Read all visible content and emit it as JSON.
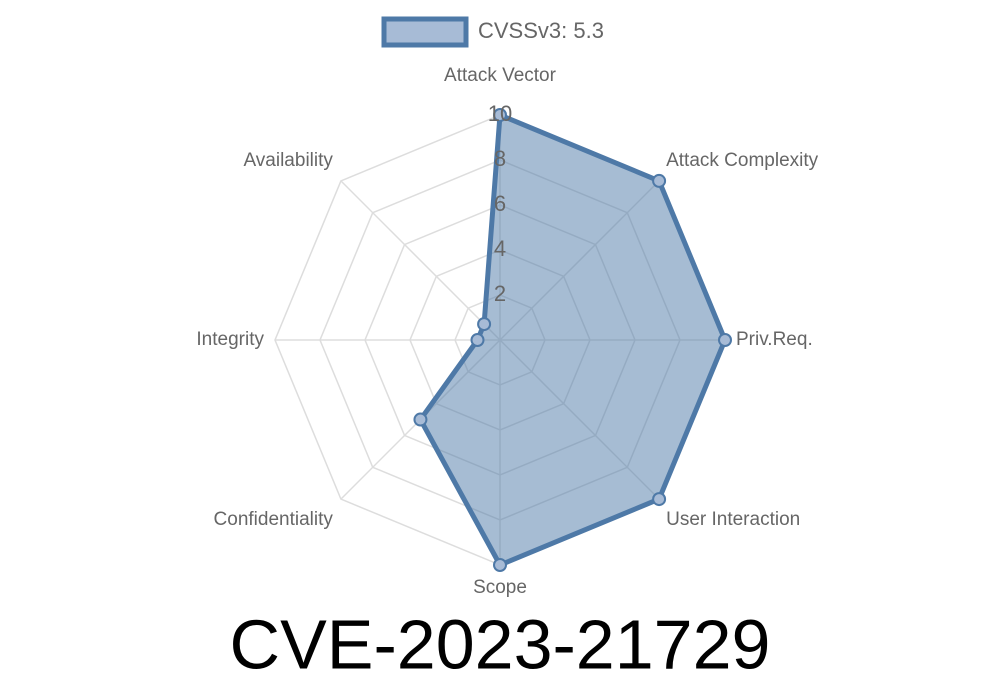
{
  "chart_data": {
    "type": "radar",
    "title": "CVE-2023-21729",
    "categories": [
      "Attack Vector",
      "Attack Complexity",
      "Priv.Req.",
      "User Interaction",
      "Scope",
      "Confidentiality",
      "Integrity",
      "Availability"
    ],
    "series": [
      {
        "name": "CVSSv3: 5.3",
        "color": "#4e79a7",
        "values": [
          10,
          10,
          10,
          10,
          10,
          5,
          1,
          1
        ]
      }
    ],
    "ylim": [
      0,
      10
    ],
    "yticks": [
      2,
      4,
      6,
      8,
      10
    ],
    "grid": true,
    "legend": "top"
  }
}
